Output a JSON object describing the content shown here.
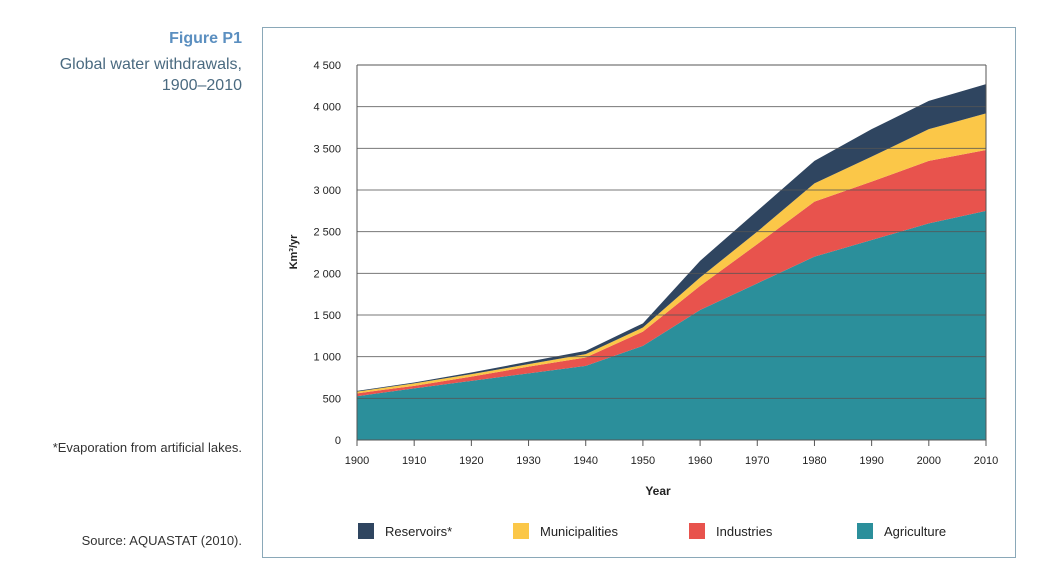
{
  "figure_label": "Figure P1",
  "figure_title": "Global water withdrawals, 1900–2010",
  "note": "*Evaporation from artificial lakes.",
  "source": "Source: AQUASTAT (2010).",
  "chart_data": {
    "type": "area",
    "stacked": true,
    "xlabel": "Year",
    "ylabel": "Km³/yr",
    "xlim": [
      1900,
      2010
    ],
    "ylim": [
      0,
      4500
    ],
    "x": [
      1900,
      1910,
      1920,
      1930,
      1940,
      1950,
      1960,
      1970,
      1980,
      1990,
      2000,
      2010
    ],
    "x_ticks": [
      "1900",
      "1910",
      "1920",
      "1930",
      "1940",
      "1950",
      "1960",
      "1970",
      "1980",
      "1990",
      "2000",
      "2010"
    ],
    "y_ticks": [
      {
        "v": 0,
        "label": "0"
      },
      {
        "v": 500,
        "label": "500"
      },
      {
        "v": 1000,
        "label": "1 000"
      },
      {
        "v": 1500,
        "label": "1 500"
      },
      {
        "v": 2000,
        "label": "2 000"
      },
      {
        "v": 2500,
        "label": "2 500"
      },
      {
        "v": 3000,
        "label": "3 000"
      },
      {
        "v": 3500,
        "label": "3 500"
      },
      {
        "v": 4000,
        "label": "4 000"
      },
      {
        "v": 4500,
        "label": "4 500"
      }
    ],
    "grid": true,
    "legend_position": "bottom",
    "series": [
      {
        "name": "Agriculture",
        "color": "#2b8f9b",
        "values": [
          525,
          620,
          710,
          800,
          890,
          1130,
          1560,
          1880,
          2200,
          2400,
          2600,
          2750
        ]
      },
      {
        "name": "Industries",
        "color": "#e8534d",
        "values": [
          35,
          30,
          50,
          80,
          100,
          170,
          290,
          470,
          660,
          700,
          750,
          730
        ]
      },
      {
        "name": "Municipalities",
        "color": "#fbc748",
        "values": [
          20,
          30,
          30,
          30,
          40,
          50,
          100,
          150,
          220,
          300,
          380,
          440
        ]
      },
      {
        "name": "Reservoirs*",
        "color": "#2f4560",
        "values": [
          10,
          10,
          20,
          30,
          40,
          50,
          200,
          250,
          270,
          330,
          340,
          350
        ]
      }
    ],
    "legend_order": [
      "Reservoirs*",
      "Municipalities",
      "Industries",
      "Agriculture"
    ]
  }
}
